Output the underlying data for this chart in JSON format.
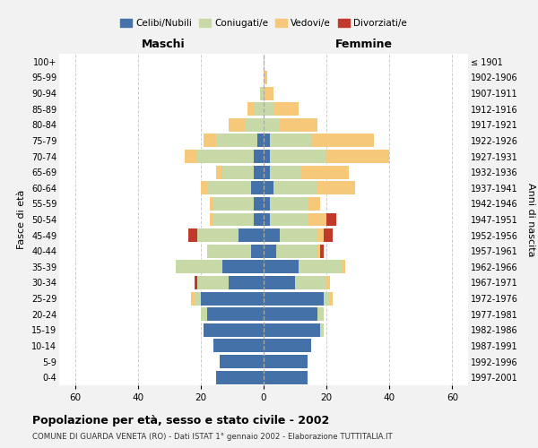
{
  "age_groups": [
    "0-4",
    "5-9",
    "10-14",
    "15-19",
    "20-24",
    "25-29",
    "30-34",
    "35-39",
    "40-44",
    "45-49",
    "50-54",
    "55-59",
    "60-64",
    "65-69",
    "70-74",
    "75-79",
    "80-84",
    "85-89",
    "90-94",
    "95-99",
    "100+"
  ],
  "birth_years": [
    "1997-2001",
    "1992-1996",
    "1987-1991",
    "1982-1986",
    "1977-1981",
    "1972-1976",
    "1967-1971",
    "1962-1966",
    "1957-1961",
    "1952-1956",
    "1947-1951",
    "1942-1946",
    "1937-1941",
    "1932-1936",
    "1927-1931",
    "1922-1926",
    "1917-1921",
    "1912-1916",
    "1907-1911",
    "1902-1906",
    "≤ 1901"
  ],
  "maschi": {
    "celibi": [
      15,
      14,
      16,
      19,
      18,
      20,
      11,
      13,
      4,
      8,
      3,
      3,
      4,
      3,
      3,
      2,
      0,
      0,
      0,
      0,
      0
    ],
    "coniugati": [
      0,
      0,
      0,
      0,
      2,
      2,
      10,
      15,
      14,
      13,
      13,
      13,
      14,
      10,
      18,
      13,
      6,
      3,
      1,
      0,
      0
    ],
    "vedovi": [
      0,
      0,
      0,
      0,
      0,
      1,
      0,
      0,
      0,
      0,
      1,
      1,
      2,
      2,
      4,
      4,
      5,
      2,
      0,
      0,
      0
    ],
    "divorziati": [
      0,
      0,
      0,
      0,
      0,
      0,
      1,
      0,
      0,
      3,
      0,
      0,
      0,
      0,
      0,
      0,
      0,
      0,
      0,
      0,
      0
    ]
  },
  "femmine": {
    "nubili": [
      14,
      14,
      15,
      18,
      17,
      19,
      10,
      11,
      4,
      5,
      2,
      2,
      3,
      2,
      2,
      2,
      0,
      0,
      0,
      0,
      0
    ],
    "coniugate": [
      0,
      0,
      0,
      1,
      2,
      2,
      10,
      14,
      13,
      12,
      12,
      12,
      14,
      10,
      18,
      13,
      5,
      3,
      0,
      0,
      0
    ],
    "vedove": [
      0,
      0,
      0,
      0,
      0,
      1,
      1,
      1,
      1,
      2,
      6,
      4,
      12,
      15,
      20,
      20,
      12,
      8,
      3,
      1,
      0
    ],
    "divorziate": [
      0,
      0,
      0,
      0,
      0,
      0,
      0,
      0,
      1,
      3,
      3,
      0,
      0,
      0,
      0,
      0,
      0,
      0,
      0,
      0,
      0
    ]
  },
  "colors": {
    "celibi_nubili": "#4472a8",
    "coniugati_e": "#c8d9a8",
    "vedovi_e": "#f5c87a",
    "divorziati_e": "#c0392b"
  },
  "xlim": 65,
  "title": "Popolazione per età, sesso e stato civile - 2002",
  "subtitle": "COMUNE DI GUARDA VENETA (RO) - Dati ISTAT 1° gennaio 2002 - Elaborazione TUTTITALIA.IT",
  "ylabel": "Fasce di età",
  "ylabel_right": "Anni di nascita",
  "xlabel_left": "Maschi",
  "xlabel_right": "Femmine",
  "bg_color": "#f2f2f2",
  "plot_bg": "#ffffff"
}
